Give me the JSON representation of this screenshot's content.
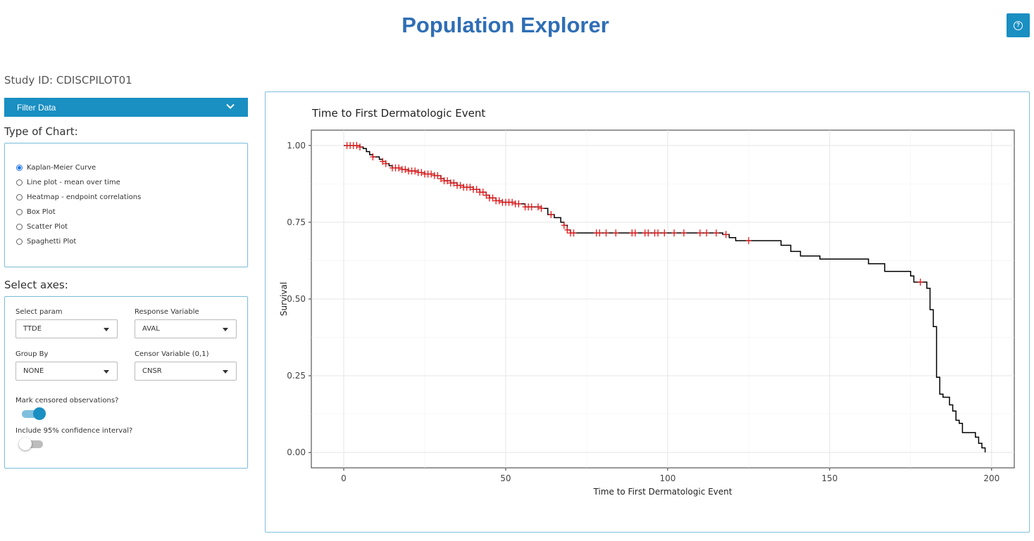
{
  "app": {
    "title": "Population Explorer",
    "help_icon": "question-circle-icon"
  },
  "study": {
    "label": "Study ID: CDISCPILOT01"
  },
  "filter": {
    "label": "Filter Data",
    "icon": "chevron-down-icon"
  },
  "chart_type": {
    "label": "Type of Chart:",
    "options": [
      {
        "label": "Kaplan-Meier Curve",
        "selected": true
      },
      {
        "label": "Line plot - mean over time",
        "selected": false
      },
      {
        "label": "Heatmap - endpoint correlations",
        "selected": false
      },
      {
        "label": "Box Plot",
        "selected": false
      },
      {
        "label": "Scatter Plot",
        "selected": false
      },
      {
        "label": "Spaghetti Plot",
        "selected": false
      }
    ]
  },
  "axes": {
    "label": "Select axes:",
    "param": {
      "label": "Select param",
      "value": "TTDE"
    },
    "response": {
      "label": "Response Variable",
      "value": "AVAL"
    },
    "group": {
      "label": "Group By",
      "value": "NONE"
    },
    "censor": {
      "label": "Censor Variable (0,1)",
      "value": "CNSR"
    },
    "mark_censored": {
      "label": "Mark censored observations?",
      "on": true
    },
    "confidence": {
      "label": "Include 95% confidence interval?",
      "on": false
    }
  },
  "colors": {
    "accent": "#1a8fc2",
    "title": "#2f6eb5",
    "censor_mark": "#e31a1c",
    "curve": "#000000"
  },
  "chart_data": {
    "type": "line",
    "title": "Time to First Dermatologic Event",
    "xlabel": "Time to First Dermatologic Event",
    "ylabel": "Survival",
    "xlim": [
      -10,
      207
    ],
    "ylim": [
      -0.05,
      1.05
    ],
    "x_ticks": [
      0,
      50,
      100,
      150,
      200
    ],
    "x_tick_labels": [
      "0",
      "50",
      "100",
      "150",
      "200"
    ],
    "y_ticks": [
      0,
      0.25,
      0.5,
      0.75,
      1.0
    ],
    "y_tick_labels": [
      "0.00",
      "0.25",
      "0.50",
      "0.75",
      "1.00"
    ],
    "grid": true,
    "series": [
      {
        "step": [
          [
            0,
            1.0
          ],
          [
            5,
            0.995
          ],
          [
            6,
            0.99
          ],
          [
            7,
            0.98
          ],
          [
            8,
            0.97
          ],
          [
            9,
            0.963
          ],
          [
            11,
            0.955
          ],
          [
            12,
            0.948
          ],
          [
            13,
            0.941
          ],
          [
            14,
            0.934
          ],
          [
            15,
            0.927
          ],
          [
            18,
            0.922
          ],
          [
            20,
            0.917
          ],
          [
            23,
            0.912
          ],
          [
            25,
            0.907
          ],
          [
            28,
            0.902
          ],
          [
            30,
            0.892
          ],
          [
            31,
            0.885
          ],
          [
            33,
            0.878
          ],
          [
            35,
            0.87
          ],
          [
            37,
            0.864
          ],
          [
            40,
            0.857
          ],
          [
            42,
            0.848
          ],
          [
            44,
            0.838
          ],
          [
            45,
            0.829
          ],
          [
            47,
            0.82
          ],
          [
            49,
            0.815
          ],
          [
            53,
            0.81
          ],
          [
            56,
            0.8
          ],
          [
            61,
            0.795
          ],
          [
            63,
            0.775
          ],
          [
            65,
            0.765
          ],
          [
            67,
            0.75
          ],
          [
            68,
            0.74
          ],
          [
            69,
            0.725
          ],
          [
            70,
            0.715
          ],
          [
            117,
            0.71
          ],
          [
            119,
            0.7
          ],
          [
            121,
            0.69
          ],
          [
            135,
            0.675
          ],
          [
            138,
            0.655
          ],
          [
            141,
            0.64
          ],
          [
            147,
            0.63
          ],
          [
            162,
            0.615
          ],
          [
            167,
            0.59
          ],
          [
            175,
            0.575
          ],
          [
            176,
            0.555
          ],
          [
            180,
            0.535
          ],
          [
            181,
            0.465
          ],
          [
            182,
            0.41
          ],
          [
            183,
            0.245
          ],
          [
            184,
            0.19
          ],
          [
            185,
            0.18
          ],
          [
            187,
            0.155
          ],
          [
            188,
            0.135
          ],
          [
            189,
            0.105
          ],
          [
            190,
            0.095
          ],
          [
            191,
            0.065
          ],
          [
            195,
            0.05
          ],
          [
            196,
            0.03
          ],
          [
            197,
            0.015
          ],
          [
            198,
            0.0
          ]
        ],
        "censored": [
          1,
          2,
          3,
          4,
          5,
          9,
          12,
          13,
          15,
          16,
          17,
          18,
          19,
          20,
          21,
          22,
          23,
          24,
          25,
          26,
          27,
          28,
          29,
          30,
          31,
          32,
          33,
          34,
          35,
          36,
          37,
          38,
          39,
          40,
          41,
          42,
          43,
          44,
          45,
          46,
          47,
          48,
          49,
          50,
          51,
          52,
          53,
          54,
          56,
          57,
          58,
          60,
          61,
          64,
          68,
          69,
          70,
          71,
          78,
          79,
          81,
          84,
          89,
          90,
          93,
          94,
          96,
          97,
          99,
          102,
          105,
          110,
          112,
          115,
          118,
          125,
          178
        ]
      }
    ]
  }
}
